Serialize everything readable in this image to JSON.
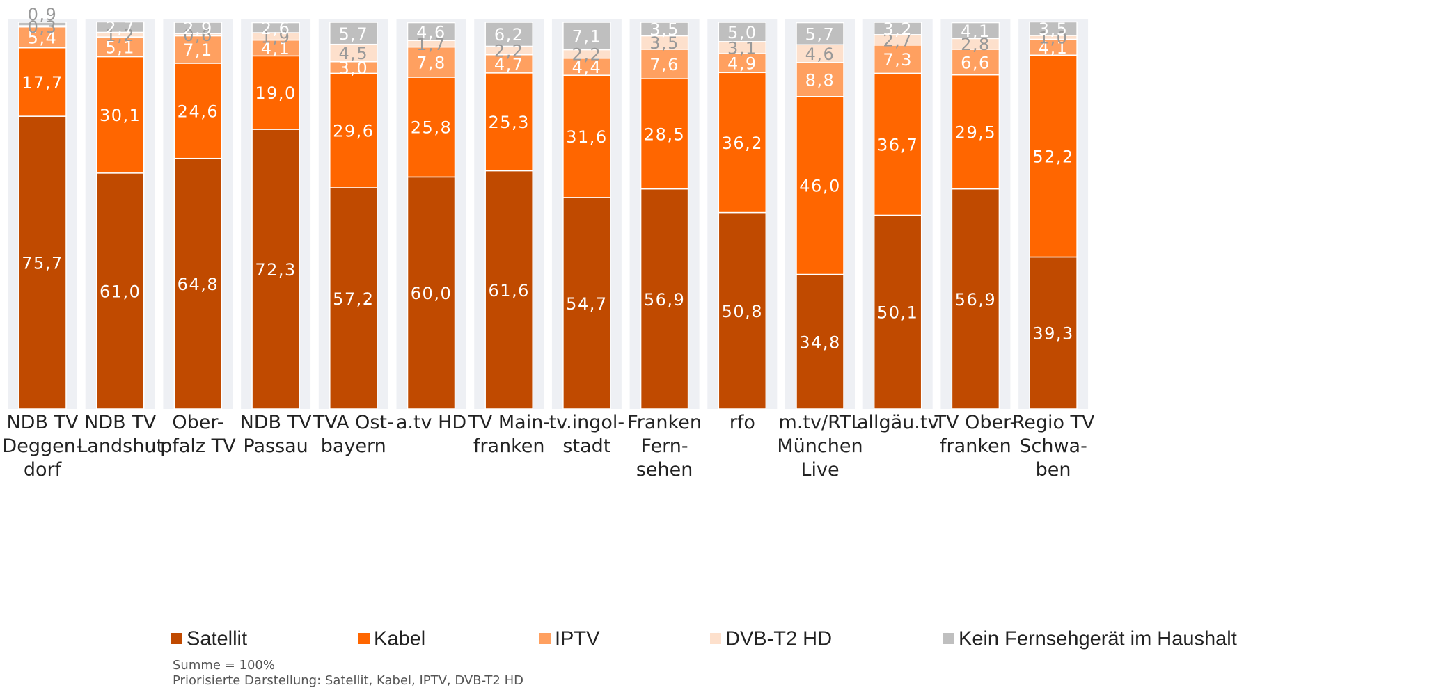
{
  "chart_data": {
    "type": "stacked_bar",
    "categories": [
      "NDB TV\nDeggen-\ndorf",
      "NDB TV\nLandshut",
      "Ober-\npfalz TV",
      "NDB TV\nPassau",
      "TVA Ost-\nbayern",
      "a.tv HD",
      "TV Main-\nfranken",
      "tv.ingol-\nstadt",
      "Franken\nFern-\nsehen",
      "rfo",
      "m.tv/RTL\nMünchen\nLive",
      "allgäu.tv",
      "TV Ober-\nfranken",
      "Regio TV\nSchwa-\nben"
    ],
    "series": [
      {
        "name": "Satellit",
        "color": "#c04a00",
        "values": [
          75.7,
          61.0,
          64.8,
          72.3,
          57.2,
          60.0,
          61.6,
          54.7,
          56.9,
          50.8,
          34.8,
          50.1,
          56.9,
          39.3
        ],
        "value_labels": [
          "75,7",
          "61,0",
          "64,8",
          "72,3",
          "57,2",
          "60,0",
          "61,6",
          "54,7",
          "56,9",
          "50,8",
          "34,8",
          "50,1",
          "56,9",
          "39,3"
        ]
      },
      {
        "name": "Kabel",
        "color": "#ff6600",
        "values": [
          17.7,
          30.1,
          24.6,
          19.0,
          29.6,
          25.8,
          25.3,
          31.6,
          28.5,
          36.2,
          46.0,
          36.7,
          29.5,
          52.2
        ],
        "value_labels": [
          "17,7",
          "30,1",
          "24,6",
          "19,0",
          "29,6",
          "25,8",
          "25,3",
          "31,6",
          "28,5",
          "36,2",
          "46,0",
          "36,7",
          "29,5",
          "52,2"
        ]
      },
      {
        "name": "IPTV",
        "color": "#ffa060",
        "values": [
          5.4,
          5.1,
          7.1,
          4.1,
          3.0,
          7.8,
          4.7,
          4.4,
          7.6,
          4.9,
          8.8,
          7.3,
          6.6,
          4.1
        ],
        "value_labels": [
          "5,4",
          "5,1",
          "7,1",
          "4,1",
          "3,0",
          "7,8",
          "4,7",
          "4,4",
          "7,6",
          "4,9",
          "8,8",
          "7,3",
          "6,6",
          "4,1"
        ]
      },
      {
        "name": "DVB-T2 HD",
        "color": "#fde0cc",
        "values": [
          0.3,
          1.2,
          0.6,
          1.9,
          4.5,
          1.7,
          2.2,
          2.2,
          3.5,
          3.1,
          4.6,
          2.7,
          2.8,
          1.0
        ],
        "value_labels": [
          "0,3",
          "1,2",
          "0,6",
          "1,9",
          "4,5",
          "1,7",
          "2,2",
          "2,2",
          "3,5",
          "3,1",
          "4,6",
          "2,7",
          "2,8",
          "1,0"
        ]
      },
      {
        "name": "Kein Fernsehgerät im Haushalt",
        "color": "#bfbfbf",
        "values": [
          0.9,
          2.7,
          2.9,
          2.6,
          5.7,
          4.6,
          6.2,
          7.1,
          3.5,
          5.0,
          5.7,
          3.2,
          4.1,
          3.5
        ],
        "value_labels": [
          "0,9",
          "2,7",
          "2,9",
          "2,6",
          "5,7",
          "4,6",
          "6,2",
          "7,1",
          "3,5",
          "5,0",
          "5,7",
          "3,2",
          "4,1",
          "3,5"
        ]
      }
    ],
    "ylim": [
      0,
      100
    ],
    "notes": [
      "Summe = 100%",
      "Priorisierte Darstellung: Satellit, Kabel, IPTV, DVB-T2 HD"
    ]
  }
}
